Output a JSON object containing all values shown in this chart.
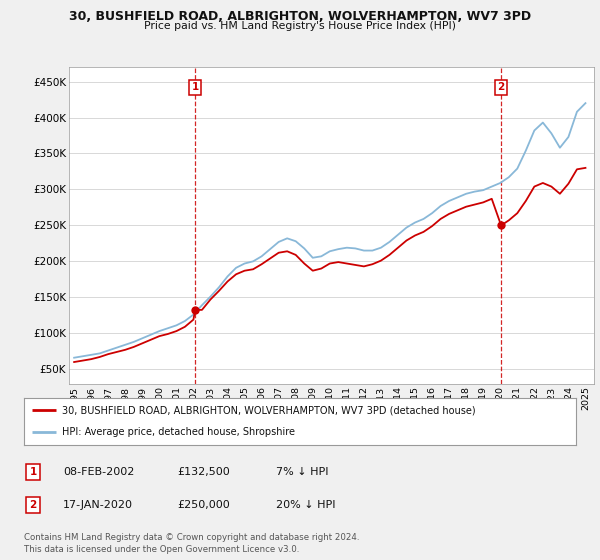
{
  "title": "30, BUSHFIELD ROAD, ALBRIGHTON, WOLVERHAMPTON, WV7 3PD",
  "subtitle": "Price paid vs. HM Land Registry's House Price Index (HPI)",
  "ylabel_ticks": [
    "£450K",
    "£400K",
    "£350K",
    "£300K",
    "£250K",
    "£200K",
    "£150K",
    "£100K",
    "£50K"
  ],
  "ytick_vals": [
    450000,
    400000,
    350000,
    300000,
    250000,
    200000,
    150000,
    100000,
    50000
  ],
  "ylim": [
    30000,
    470000
  ],
  "xlim_start": 1994.7,
  "xlim_end": 2025.5,
  "sale1": {
    "year": 2002.1,
    "price": 132500,
    "label": "1"
  },
  "sale2": {
    "year": 2020.05,
    "price": 250000,
    "label": "2"
  },
  "legend_red": "30, BUSHFIELD ROAD, ALBRIGHTON, WOLVERHAMPTON, WV7 3PD (detached house)",
  "legend_blue": "HPI: Average price, detached house, Shropshire",
  "table_rows": [
    {
      "num": "1",
      "date": "08-FEB-2002",
      "price": "£132,500",
      "note": "7% ↓ HPI"
    },
    {
      "num": "2",
      "date": "17-JAN-2020",
      "price": "£250,000",
      "note": "20% ↓ HPI"
    }
  ],
  "footer": "Contains HM Land Registry data © Crown copyright and database right 2024.\nThis data is licensed under the Open Government Licence v3.0.",
  "bg_color": "#f0f0f0",
  "plot_bg_color": "#ffffff",
  "grid_color": "#d8d8d8",
  "red_color": "#cc0000",
  "blue_color": "#89b8d8",
  "hpi_data": {
    "years": [
      1995,
      1995.5,
      1996,
      1996.5,
      1997,
      1997.5,
      1998,
      1998.5,
      1999,
      1999.5,
      2000,
      2000.5,
      2001,
      2001.5,
      2002,
      2002.5,
      2003,
      2003.5,
      2004,
      2004.5,
      2005,
      2005.5,
      2006,
      2006.5,
      2007,
      2007.5,
      2008,
      2008.5,
      2009,
      2009.5,
      2010,
      2010.5,
      2011,
      2011.5,
      2012,
      2012.5,
      2013,
      2013.5,
      2014,
      2014.5,
      2015,
      2015.5,
      2016,
      2016.5,
      2017,
      2017.5,
      2018,
      2018.5,
      2019,
      2019.5,
      2020,
      2020.5,
      2021,
      2021.5,
      2022,
      2022.5,
      2023,
      2023.5,
      2024,
      2024.5,
      2025
    ],
    "values": [
      66000,
      68000,
      70000,
      72000,
      76000,
      80000,
      84000,
      88000,
      93000,
      98000,
      103000,
      107000,
      111000,
      117000,
      126000,
      139000,
      151000,
      164000,
      179000,
      191000,
      197000,
      200000,
      207000,
      217000,
      227000,
      232000,
      228000,
      218000,
      205000,
      207000,
      214000,
      217000,
      219000,
      218000,
      215000,
      215000,
      219000,
      227000,
      237000,
      247000,
      254000,
      259000,
      267000,
      277000,
      284000,
      289000,
      294000,
      297000,
      299000,
      304000,
      309000,
      317000,
      329000,
      354000,
      382000,
      393000,
      378000,
      358000,
      373000,
      408000,
      420000
    ]
  },
  "price_data": {
    "years": [
      1995,
      1995.5,
      1996,
      1996.5,
      1997,
      1997.5,
      1998,
      1998.5,
      1999,
      1999.5,
      2000,
      2000.5,
      2001,
      2001.5,
      2002,
      2002.1,
      2002.5,
      2003,
      2003.5,
      2004,
      2004.5,
      2005,
      2005.5,
      2006,
      2006.5,
      2007,
      2007.5,
      2008,
      2008.5,
      2009,
      2009.5,
      2010,
      2010.5,
      2011,
      2011.5,
      2012,
      2012.5,
      2013,
      2013.5,
      2014,
      2014.5,
      2015,
      2015.5,
      2016,
      2016.5,
      2017,
      2017.5,
      2018,
      2018.5,
      2019,
      2019.5,
      2020.05,
      2020.5,
      2021,
      2021.5,
      2022,
      2022.5,
      2023,
      2023.5,
      2024,
      2024.5,
      2025
    ],
    "values": [
      60000,
      62000,
      64000,
      67000,
      71000,
      74000,
      77000,
      81000,
      86000,
      91000,
      96000,
      99000,
      103000,
      109000,
      119000,
      132500,
      132500,
      147000,
      159000,
      172000,
      182000,
      187000,
      189000,
      196000,
      204000,
      212000,
      214000,
      209000,
      197000,
      187000,
      190000,
      197000,
      199000,
      197000,
      195000,
      193000,
      196000,
      201000,
      209000,
      219000,
      229000,
      236000,
      241000,
      249000,
      259000,
      266000,
      271000,
      276000,
      279000,
      282000,
      287000,
      250000,
      257000,
      267000,
      284000,
      304000,
      309000,
      304000,
      294000,
      308000,
      328000,
      330000
    ]
  }
}
